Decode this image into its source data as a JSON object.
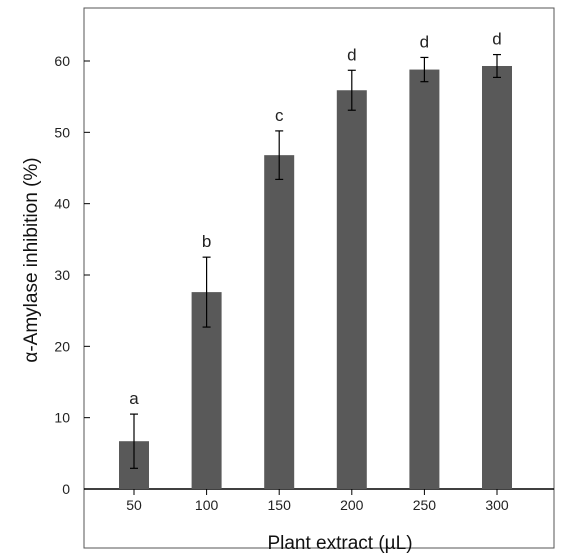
{
  "chart_data": {
    "type": "bar",
    "categories": [
      "50",
      "100",
      "150",
      "200",
      "250",
      "300"
    ],
    "values": [
      6.7,
      27.6,
      46.8,
      55.9,
      58.8,
      59.3
    ],
    "error": [
      3.8,
      4.9,
      3.4,
      2.8,
      1.7,
      1.6
    ],
    "significance": [
      "a",
      "b",
      "c",
      "d",
      "d",
      "d"
    ],
    "xlabel": "Plant extract (µL)",
    "ylabel": "α-Amylase inhibition (%)",
    "ylim": [
      0,
      66
    ],
    "yticks": [
      0,
      10,
      20,
      30,
      40,
      50,
      60
    ],
    "bar_color": "#595959",
    "axis_color": "#000000",
    "grid": false,
    "legend": "none"
  }
}
